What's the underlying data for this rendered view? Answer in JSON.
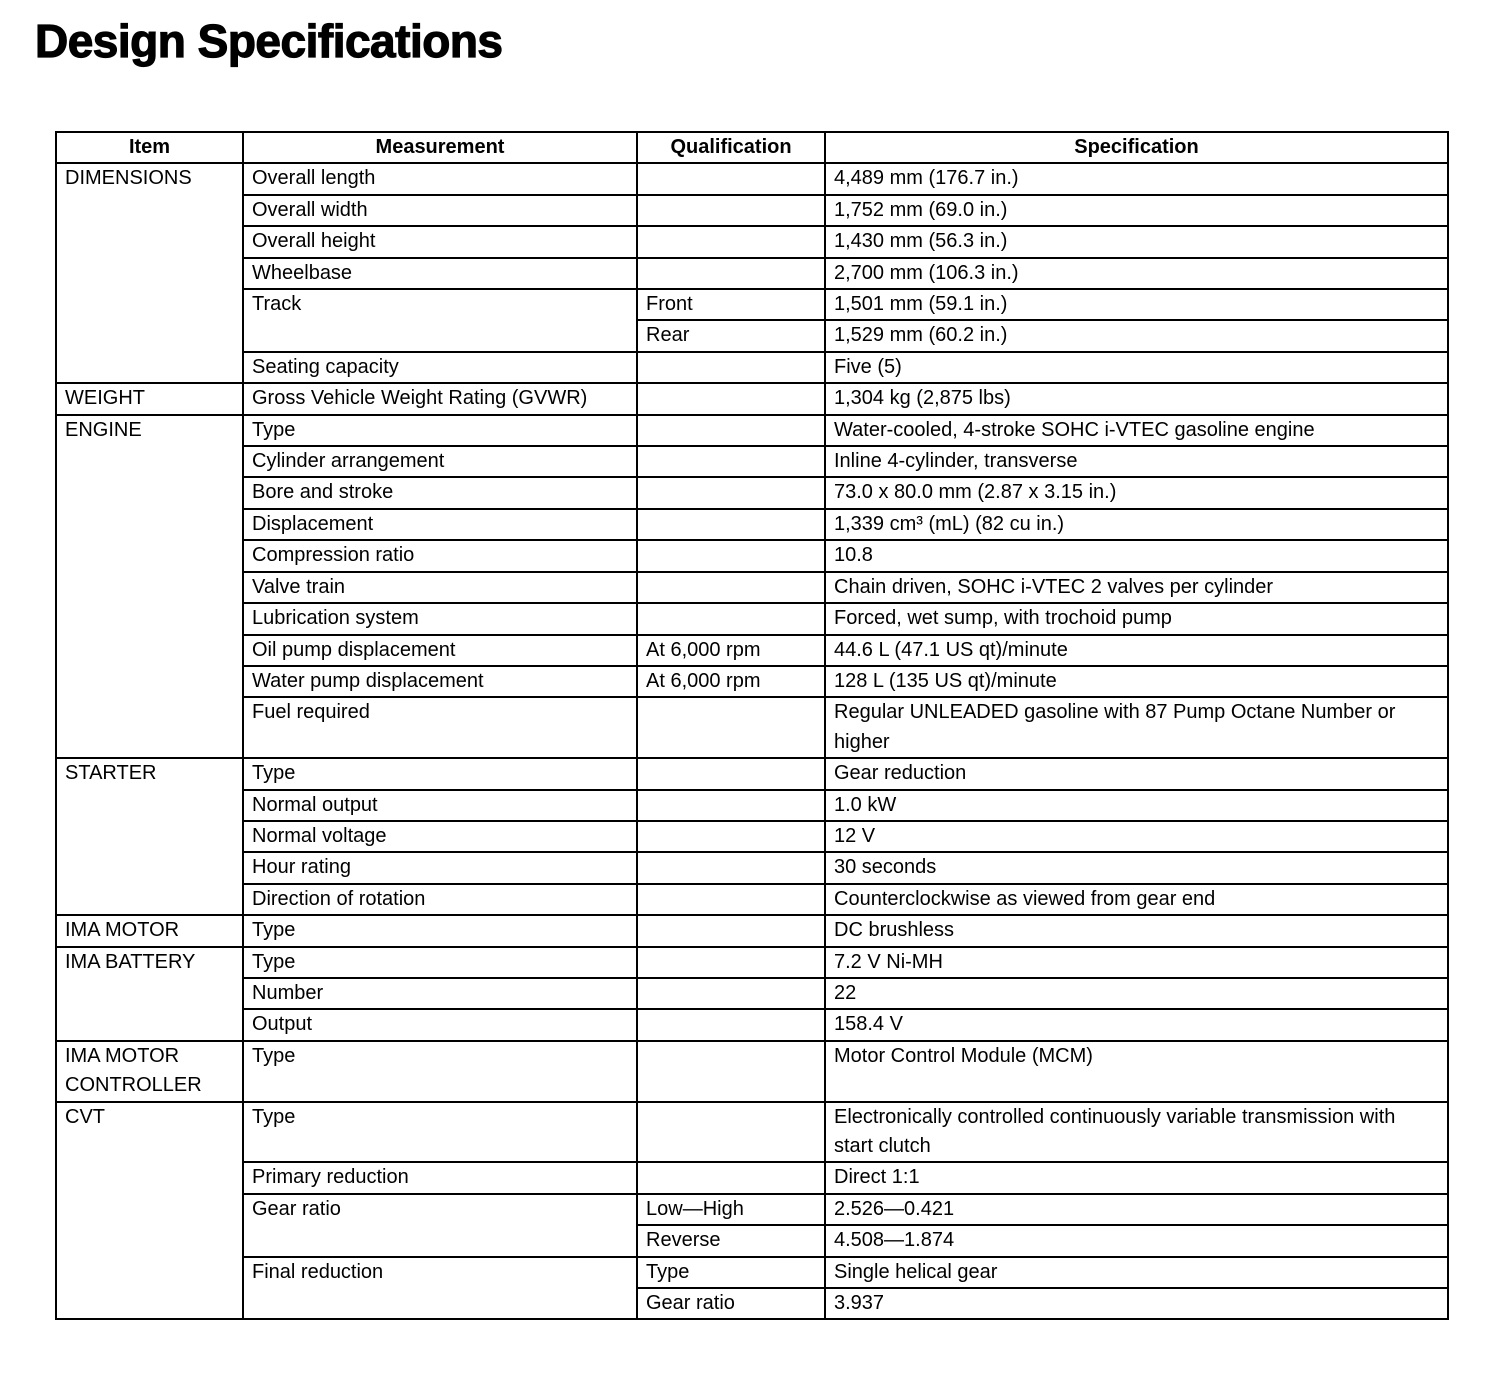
{
  "title": "Design Specifications",
  "table": {
    "header": [
      "Item",
      "Measurement",
      "Qualification",
      "Specification"
    ],
    "groups": [
      {
        "item": "DIMENSIONS",
        "entries": [
          {
            "measurement": "Overall length",
            "specs": [
              {
                "specification": "4,489 mm (176.7 in.)"
              }
            ]
          },
          {
            "measurement": "Overall width",
            "specs": [
              {
                "specification": "1,752 mm (69.0 in.)"
              }
            ]
          },
          {
            "measurement": "Overall height",
            "specs": [
              {
                "specification": "1,430 mm (56.3 in.)"
              }
            ]
          },
          {
            "measurement": "Wheelbase",
            "specs": [
              {
                "specification": "2,700 mm (106.3 in.)"
              }
            ]
          },
          {
            "measurement": "Track",
            "specs": [
              {
                "qualification": "Front",
                "specification": "1,501 mm (59.1 in.)"
              },
              {
                "qualification": "Rear",
                "specification": "1,529 mm (60.2 in.)"
              }
            ]
          },
          {
            "measurement": "Seating capacity",
            "specs": [
              {
                "specification": "Five (5)"
              }
            ]
          }
        ]
      },
      {
        "item": "WEIGHT",
        "entries": [
          {
            "measurement": "Gross Vehicle Weight Rating (GVWR)",
            "specs": [
              {
                "specification": "1,304 kg (2,875 lbs)"
              }
            ]
          }
        ]
      },
      {
        "item": "ENGINE",
        "entries": [
          {
            "measurement": "Type",
            "specs": [
              {
                "specification": "Water-cooled, 4-stroke SOHC i-VTEC gasoline engine"
              }
            ]
          },
          {
            "measurement": "Cylinder arrangement",
            "specs": [
              {
                "specification": "Inline 4-cylinder, transverse"
              }
            ]
          },
          {
            "measurement": "Bore and stroke",
            "specs": [
              {
                "specification": "73.0 x 80.0 mm (2.87 x 3.15 in.)"
              }
            ]
          },
          {
            "measurement": "Displacement",
            "specs": [
              {
                "specification": "1,339 cm³ (mL) (82 cu in.)"
              }
            ]
          },
          {
            "measurement": "Compression ratio",
            "specs": [
              {
                "specification": "10.8"
              }
            ]
          },
          {
            "measurement": "Valve train",
            "specs": [
              {
                "specification": "Chain driven, SOHC i-VTEC 2 valves per cylinder"
              }
            ]
          },
          {
            "measurement": "Lubrication system",
            "specs": [
              {
                "specification": "Forced, wet sump, with trochoid pump"
              }
            ]
          },
          {
            "measurement": "Oil pump displacement",
            "specs": [
              {
                "qualification": "At 6,000 rpm",
                "specification": "44.6 L (47.1 US qt)/minute"
              }
            ]
          },
          {
            "measurement": "Water pump displacement",
            "specs": [
              {
                "qualification": "At 6,000 rpm",
                "specification": "128 L (135 US qt)/minute"
              }
            ]
          },
          {
            "measurement": "Fuel required",
            "specs": [
              {
                "specification": "Regular UNLEADED gasoline with 87 Pump Octane Number or higher"
              }
            ]
          }
        ]
      },
      {
        "item": "STARTER",
        "entries": [
          {
            "measurement": "Type",
            "specs": [
              {
                "specification": "Gear reduction"
              }
            ]
          },
          {
            "measurement": "Normal output",
            "specs": [
              {
                "specification": "1.0 kW"
              }
            ]
          },
          {
            "measurement": "Normal voltage",
            "specs": [
              {
                "specification": "12 V"
              }
            ]
          },
          {
            "measurement": "Hour rating",
            "specs": [
              {
                "specification": "30 seconds"
              }
            ]
          },
          {
            "measurement": "Direction of rotation",
            "specs": [
              {
                "specification": "Counterclockwise as viewed from gear end"
              }
            ]
          }
        ]
      },
      {
        "item": "IMA MOTOR",
        "entries": [
          {
            "measurement": "Type",
            "specs": [
              {
                "specification": "DC brushless"
              }
            ]
          }
        ]
      },
      {
        "item": "IMA BATTERY",
        "entries": [
          {
            "measurement": "Type",
            "specs": [
              {
                "specification": "7.2 V Ni-MH"
              }
            ]
          },
          {
            "measurement": "Number",
            "specs": [
              {
                "specification": "22"
              }
            ]
          },
          {
            "measurement": "Output",
            "specs": [
              {
                "specification": "158.4 V"
              }
            ]
          }
        ]
      },
      {
        "item": "IMA MOTOR CONTROLLER",
        "entries": [
          {
            "measurement": "Type",
            "specs": [
              {
                "specification": "Motor Control Module (MCM)"
              }
            ]
          }
        ]
      },
      {
        "item": "CVT",
        "entries": [
          {
            "measurement": "Type",
            "specs": [
              {
                "specification": "Electronically controlled continuously variable transmission with start clutch"
              }
            ]
          },
          {
            "measurement": "Primary reduction",
            "specs": [
              {
                "specification": "Direct 1:1"
              }
            ]
          },
          {
            "measurement": "Gear ratio",
            "specs": [
              {
                "qualification": "Low—High",
                "specification": "2.526—0.421"
              },
              {
                "qualification": "Reverse",
                "specification": "4.508—1.874"
              }
            ]
          },
          {
            "measurement": "Final reduction",
            "specs": [
              {
                "qualification": "Type",
                "specification": "Single helical gear"
              },
              {
                "qualification": "Gear ratio",
                "specification": "3.937"
              }
            ]
          }
        ]
      }
    ]
  }
}
